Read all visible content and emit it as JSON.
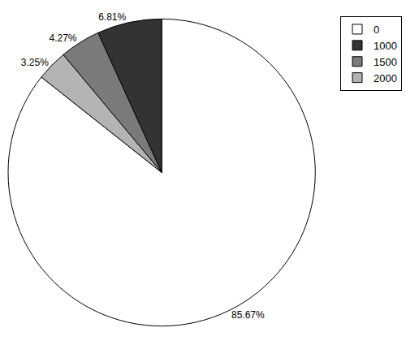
{
  "chart_data": {
    "type": "pie",
    "categories": [
      "0",
      "1000",
      "1500",
      "2000"
    ],
    "values": [
      85.67,
      6.81,
      4.27,
      3.25
    ],
    "value_labels": [
      "85.67%",
      "6.81%",
      "4.27%",
      "3.25%"
    ],
    "colors": [
      "#ffffff",
      "#333333",
      "#7a7a7a",
      "#b4b4b4"
    ],
    "data_labels": true,
    "legend": "top-right"
  }
}
